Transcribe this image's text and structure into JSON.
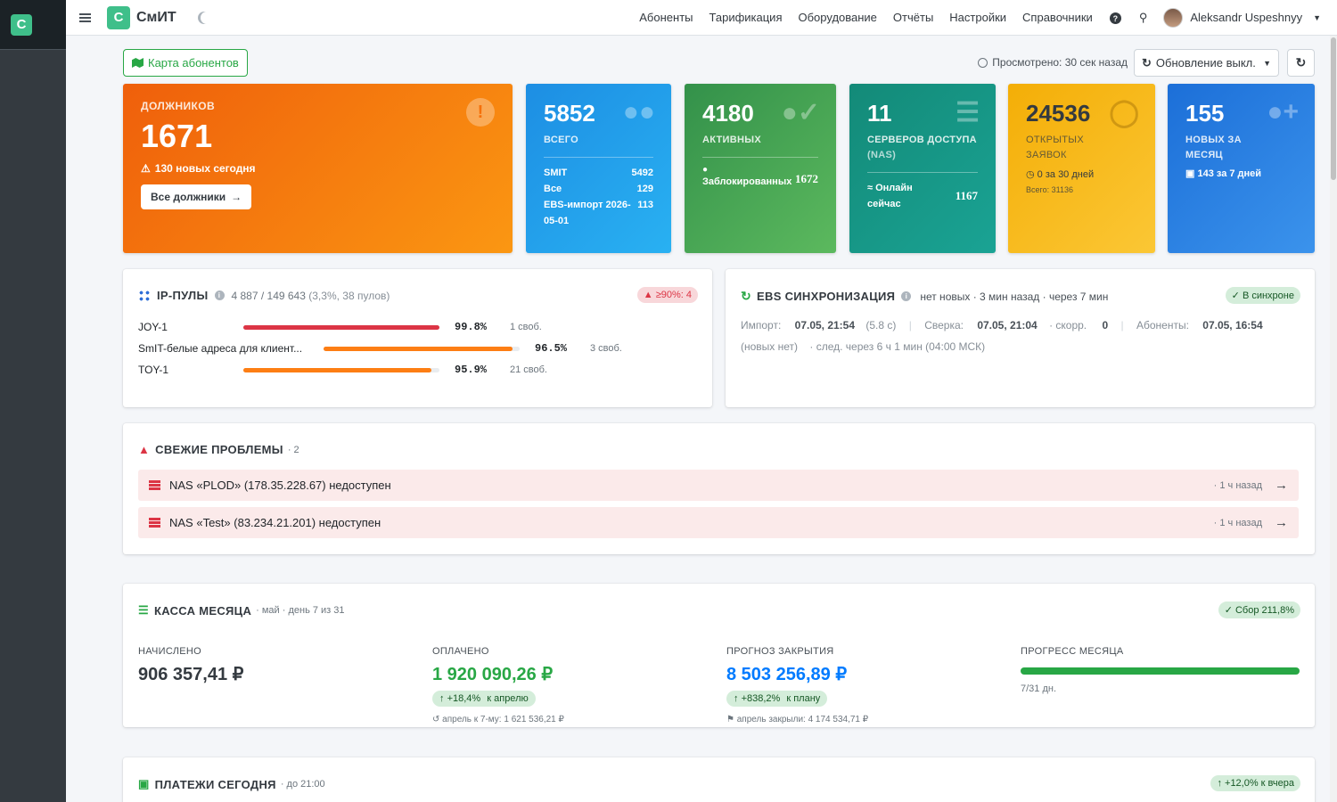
{
  "app": {
    "logo_letter": "С",
    "brand": "СмИТ"
  },
  "nav": {
    "items": [
      "Абоненты",
      "Тарификация",
      "Оборудование",
      "Отчёты",
      "Настройки",
      "Справочники"
    ],
    "help_icon": "question-circle-icon",
    "search_icon": "search-icon",
    "user_name": "Aleksandr Uspeshnyy"
  },
  "toolbar": {
    "map_button": "Карта абонентов",
    "viewed": "Просмотрено: 30 сек назад",
    "refresh_toggle": "Обновление выкл."
  },
  "stats": {
    "debtors": {
      "label": "ДОЛЖНИКОВ",
      "value": "1671",
      "note": "130 новых сегодня",
      "button": "Все должники",
      "color": "#f5700a"
    },
    "total": {
      "value": "5852",
      "label": "ВСЕГО",
      "rows": [
        {
          "k": "SMIT",
          "v": "5492"
        },
        {
          "k": "Все",
          "v": "129"
        },
        {
          "k": "EBS-импорт 2026-05-01",
          "v": "113"
        }
      ],
      "color": "#2196f3"
    },
    "active": {
      "value": "4180",
      "label": "АКТИВНЫХ",
      "blocked_label": "Заблокированных",
      "blocked_value": "1672",
      "color": "#3a9d4e"
    },
    "nas": {
      "value": "11",
      "label": "СЕРВЕРОВ ДОСТУПА",
      "label_extra": "(NAS)",
      "online_label": "Онлайн сейчас",
      "online_value": "1167",
      "color": "#17907f"
    },
    "tickets": {
      "value": "24536",
      "label": "ОТКРЫТЫХ ЗАЯВОК",
      "sub1": "0 за 30 дней",
      "sub2": "Всего: 31136",
      "color": "#f7b90f"
    },
    "new_month": {
      "value": "155",
      "label": "НОВЫХ ЗА МЕСЯЦ",
      "sub": "143 за 7 дней",
      "color": "#1f7fe0"
    }
  },
  "ip_pools": {
    "title": "IP-ПУЛЫ",
    "summary": "4 887 / 149 643",
    "summary_extra": "(3,3%, 38 пулов)",
    "badge": "≥90%: 4",
    "pools": [
      {
        "name": "JOY-1",
        "pct_text": "99.8%",
        "pct": 0.998,
        "free": "1 своб.",
        "color": "#dc3545"
      },
      {
        "name": "SmIT-белые адреса для клиент...",
        "pct_text": "96.5%",
        "pct": 0.965,
        "free": "3 своб.",
        "color": "#fd7e14"
      },
      {
        "name": "TOY-1",
        "pct_text": "95.9%",
        "pct": 0.959,
        "free": "21 своб.",
        "color": "#fd7e14"
      }
    ]
  },
  "ebs": {
    "title": "EBS СИНХРОНИЗАЦИЯ",
    "status": "нет новых · 3 мин назад · через 7 мин",
    "badge": "✓ В синхроне",
    "line1": {
      "import_lbl": "Импорт:",
      "import_val": "07.05, 21:54",
      "import_dur": "(5.8 с)",
      "rec_lbl": "Сверка:",
      "rec_val": "07.05, 21:04",
      "corr_lbl": "· скорр.",
      "corr_val": "0",
      "abon_lbl": "Абоненты:",
      "abon_val": "07.05, 16:54"
    },
    "line2": {
      "none": "(новых нет)",
      "next": "· след. через 6 ч 1 мин (04:00 МСК)"
    }
  },
  "problems": {
    "title": "СВЕЖИЕ ПРОБЛЕМЫ",
    "count": "· 2",
    "items": [
      {
        "text": "NAS «PLOD» (178.35.228.67) недоступен",
        "when": "· 1 ч назад"
      },
      {
        "text": "NAS «Test» (83.234.21.201) недоступен",
        "when": "· 1 ч назад"
      }
    ]
  },
  "kassa": {
    "title": "КАССА МЕСЯЦА",
    "sub": "· май · день 7 из 31",
    "badge": "✓ Сбор 211,8%",
    "charged": {
      "label": "НАЧИСЛЕНО",
      "value": "906 357,41 ₽"
    },
    "paid": {
      "label": "ОПЛАЧЕНО",
      "value": "1 920 090,26 ₽",
      "chip": "+18,4%",
      "chip_extra": "к апрелю",
      "sub": "апрель к 7-му: 1 621 536,21 ₽",
      "color": "#28a745"
    },
    "forecast": {
      "label": "ПРОГНОЗ ЗАКРЫТИЯ",
      "value": "8 503 256,89 ₽",
      "chip": "+838,2%",
      "chip_extra": "к плану",
      "sub": "апрель закрыли: 4 174 534,71 ₽",
      "color": "#007bff"
    },
    "progress": {
      "label": "ПРОГРЕСС МЕСЯЦА",
      "value": 1.0,
      "sub": "7/31 дн."
    }
  },
  "payments": {
    "title": "ПЛАТЕЖИ СЕГОДНЯ",
    "sub": "· до 21:00",
    "badge": "+12,0% к вчера"
  }
}
